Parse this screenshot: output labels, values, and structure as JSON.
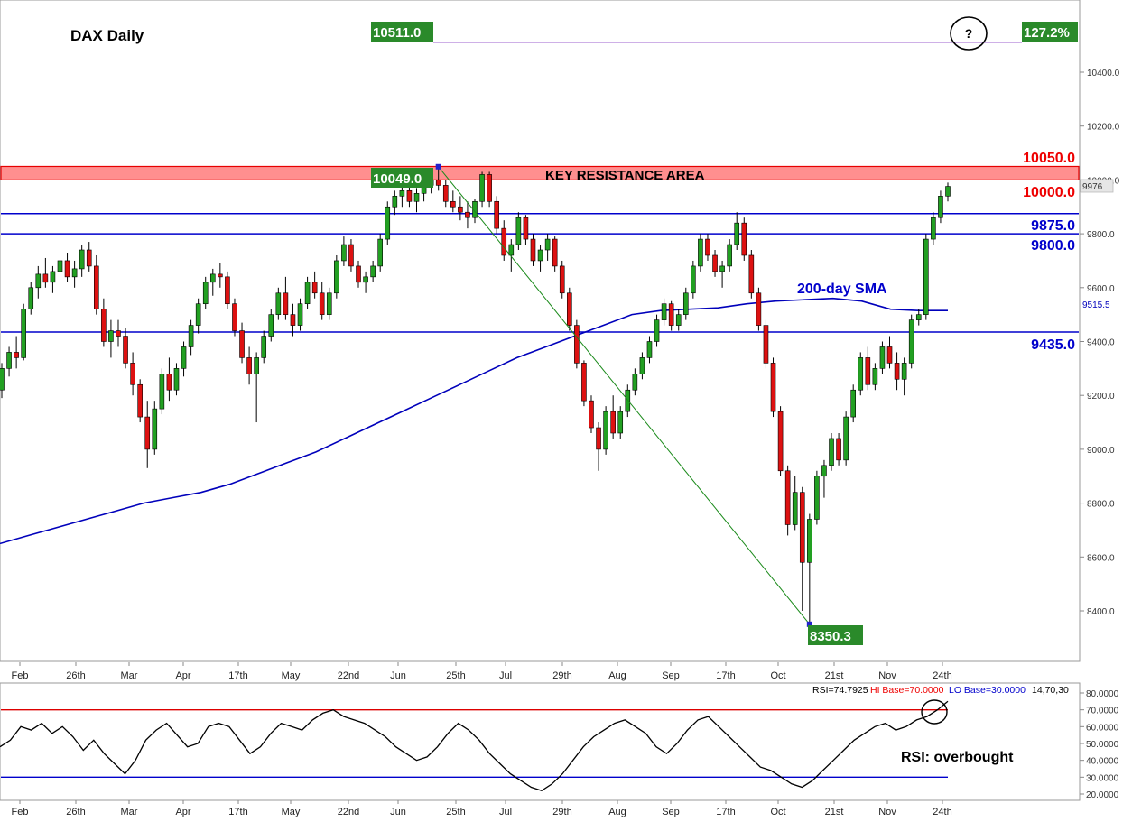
{
  "chart_data": [
    {
      "type": "candlestick",
      "title": "DAX Daily",
      "ylim": [
        8250,
        10550
      ],
      "y_ticks": [
        "10400.0",
        "10200.0",
        "10000.0",
        "9800.0",
        "9600.0",
        "9400.0",
        "9200.0",
        "9000.0",
        "8800.0",
        "8600.0",
        "8400.0"
      ],
      "y_tick_values": [
        10400,
        10200,
        10000,
        9800,
        9600,
        9400,
        9200,
        9000,
        8800,
        8600,
        8400
      ],
      "x_ticks": [
        "Feb",
        "26th",
        "Mar",
        "Apr",
        "17th",
        "May",
        "22nd",
        "Jun",
        "25th",
        "Jul",
        "29th",
        "Aug",
        "Sep",
        "17th",
        "Oct",
        "21st",
        "Nov",
        "24th"
      ],
      "levels": [
        {
          "value": 9875,
          "label": "9875.0",
          "color": "#0000cc"
        },
        {
          "value": 9800,
          "label": "9800.0",
          "color": "#0000cc"
        },
        {
          "value": 9435,
          "label": "9435.0",
          "color": "#0000cc"
        }
      ],
      "resistance_zone": {
        "low": 10000,
        "high": 10050,
        "label": "KEY RESISTANCE AREA",
        "low_label": "10000.0",
        "high_label": "10050.0",
        "color": "#ff4d4d"
      },
      "extension": {
        "value": 10511,
        "label": "10511.0",
        "ratio_label": "127.2%",
        "question": "?"
      },
      "swing_points": [
        {
          "label": "10049.0",
          "value": 10049
        },
        {
          "label": "8350.3",
          "value": 8350.3
        }
      ],
      "sma": {
        "label": "200-day SMA",
        "last_value_label": "9515.5",
        "color": "#0000bb"
      },
      "last_price_label": "9976",
      "candles": [
        [
          9220,
          9320,
          9190,
          9300
        ],
        [
          9300,
          9380,
          9270,
          9360
        ],
        [
          9360,
          9420,
          9300,
          9340
        ],
        [
          9340,
          9540,
          9330,
          9520
        ],
        [
          9520,
          9620,
          9500,
          9600
        ],
        [
          9600,
          9680,
          9560,
          9650
        ],
        [
          9650,
          9710,
          9600,
          9620
        ],
        [
          9620,
          9680,
          9580,
          9660
        ],
        [
          9660,
          9720,
          9630,
          9700
        ],
        [
          9700,
          9730,
          9620,
          9640
        ],
        [
          9640,
          9700,
          9600,
          9670
        ],
        [
          9670,
          9760,
          9640,
          9740
        ],
        [
          9740,
          9770,
          9660,
          9680
        ],
        [
          9680,
          9720,
          9500,
          9520
        ],
        [
          9520,
          9560,
          9380,
          9400
        ],
        [
          9400,
          9480,
          9340,
          9440
        ],
        [
          9440,
          9480,
          9380,
          9420
        ],
        [
          9420,
          9450,
          9300,
          9320
        ],
        [
          9320,
          9360,
          9200,
          9240
        ],
        [
          9240,
          9260,
          9100,
          9120
        ],
        [
          9120,
          9180,
          8930,
          9000
        ],
        [
          9000,
          9180,
          8980,
          9150
        ],
        [
          9150,
          9300,
          9130,
          9280
        ],
        [
          9280,
          9340,
          9180,
          9220
        ],
        [
          9220,
          9320,
          9200,
          9300
        ],
        [
          9300,
          9400,
          9270,
          9380
        ],
        [
          9380,
          9480,
          9350,
          9460
        ],
        [
          9460,
          9560,
          9430,
          9540
        ],
        [
          9540,
          9640,
          9520,
          9620
        ],
        [
          9620,
          9670,
          9570,
          9650
        ],
        [
          9650,
          9690,
          9600,
          9640
        ],
        [
          9640,
          9660,
          9520,
          9540
        ],
        [
          9540,
          9560,
          9420,
          9440
        ],
        [
          9440,
          9470,
          9320,
          9340
        ],
        [
          9340,
          9380,
          9240,
          9280
        ],
        [
          9280,
          9360,
          9100,
          9340
        ],
        [
          9340,
          9440,
          9320,
          9420
        ],
        [
          9420,
          9520,
          9400,
          9500
        ],
        [
          9500,
          9600,
          9480,
          9580
        ],
        [
          9580,
          9640,
          9480,
          9500
        ],
        [
          9500,
          9540,
          9420,
          9460
        ],
        [
          9460,
          9560,
          9440,
          9540
        ],
        [
          9540,
          9640,
          9520,
          9620
        ],
        [
          9620,
          9660,
          9560,
          9580
        ],
        [
          9580,
          9620,
          9480,
          9500
        ],
        [
          9500,
          9600,
          9480,
          9580
        ],
        [
          9580,
          9720,
          9560,
          9700
        ],
        [
          9700,
          9790,
          9680,
          9760
        ],
        [
          9760,
          9780,
          9660,
          9680
        ],
        [
          9680,
          9700,
          9600,
          9620
        ],
        [
          9620,
          9660,
          9580,
          9640
        ],
        [
          9640,
          9700,
          9620,
          9680
        ],
        [
          9680,
          9800,
          9660,
          9780
        ],
        [
          9780,
          9920,
          9760,
          9900
        ],
        [
          9900,
          9960,
          9870,
          9940
        ],
        [
          9940,
          9980,
          9900,
          9960
        ],
        [
          9960,
          9990,
          9900,
          9920
        ],
        [
          9920,
          9970,
          9880,
          9950
        ],
        [
          9950,
          10010,
          9920,
          9980
        ],
        [
          9980,
          10020,
          9950,
          10000
        ],
        [
          10000,
          10049,
          9960,
          9980
        ],
        [
          9980,
          10000,
          9900,
          9920
        ],
        [
          9920,
          9960,
          9880,
          9900
        ],
        [
          9900,
          9940,
          9850,
          9880
        ],
        [
          9880,
          9920,
          9820,
          9860
        ],
        [
          9860,
          9930,
          9840,
          9920
        ],
        [
          9920,
          10030,
          9900,
          10020
        ],
        [
          10020,
          10030,
          9900,
          9920
        ],
        [
          9920,
          9940,
          9800,
          9820
        ],
        [
          9820,
          9850,
          9700,
          9720
        ],
        [
          9720,
          9780,
          9660,
          9760
        ],
        [
          9760,
          9880,
          9740,
          9860
        ],
        [
          9860,
          9870,
          9760,
          9780
        ],
        [
          9780,
          9800,
          9680,
          9700
        ],
        [
          9700,
          9760,
          9660,
          9740
        ],
        [
          9740,
          9800,
          9700,
          9780
        ],
        [
          9780,
          9790,
          9660,
          9680
        ],
        [
          9680,
          9700,
          9560,
          9580
        ],
        [
          9580,
          9600,
          9440,
          9460
        ],
        [
          9460,
          9480,
          9300,
          9320
        ],
        [
          9320,
          9330,
          9160,
          9180
        ],
        [
          9180,
          9200,
          9060,
          9080
        ],
        [
          9080,
          9100,
          8920,
          9000
        ],
        [
          9000,
          9160,
          8980,
          9140
        ],
        [
          9140,
          9200,
          9040,
          9060
        ],
        [
          9060,
          9160,
          9040,
          9140
        ],
        [
          9140,
          9240,
          9120,
          9220
        ],
        [
          9220,
          9300,
          9200,
          9280
        ],
        [
          9280,
          9360,
          9260,
          9340
        ],
        [
          9340,
          9420,
          9320,
          9400
        ],
        [
          9400,
          9500,
          9380,
          9480
        ],
        [
          9480,
          9560,
          9460,
          9540
        ],
        [
          9540,
          9550,
          9440,
          9460
        ],
        [
          9460,
          9520,
          9440,
          9500
        ],
        [
          9500,
          9600,
          9480,
          9580
        ],
        [
          9580,
          9700,
          9560,
          9680
        ],
        [
          9680,
          9800,
          9660,
          9780
        ],
        [
          9780,
          9800,
          9700,
          9720
        ],
        [
          9720,
          9740,
          9640,
          9660
        ],
        [
          9660,
          9700,
          9600,
          9680
        ],
        [
          9680,
          9780,
          9660,
          9760
        ],
        [
          9760,
          9880,
          9740,
          9840
        ],
        [
          9840,
          9860,
          9700,
          9720
        ],
        [
          9720,
          9740,
          9560,
          9580
        ],
        [
          9580,
          9600,
          9440,
          9460
        ],
        [
          9460,
          9480,
          9300,
          9320
        ],
        [
          9320,
          9340,
          9120,
          9140
        ],
        [
          9140,
          9160,
          8900,
          8920
        ],
        [
          8920,
          8940,
          8680,
          8720
        ],
        [
          8720,
          8900,
          8700,
          8840
        ],
        [
          8840,
          8860,
          8400,
          8580
        ],
        [
          8580,
          8760,
          8350,
          8740
        ],
        [
          8740,
          8920,
          8720,
          8900
        ],
        [
          8900,
          8960,
          8820,
          8940
        ],
        [
          8940,
          9060,
          8920,
          9040
        ],
        [
          9040,
          9060,
          8940,
          8960
        ],
        [
          8960,
          9140,
          8940,
          9120
        ],
        [
          9120,
          9240,
          9100,
          9220
        ],
        [
          9220,
          9360,
          9200,
          9340
        ],
        [
          9340,
          9380,
          9220,
          9240
        ],
        [
          9240,
          9320,
          9220,
          9300
        ],
        [
          9300,
          9400,
          9280,
          9380
        ],
        [
          9380,
          9420,
          9300,
          9320
        ],
        [
          9320,
          9360,
          9220,
          9260
        ],
        [
          9260,
          9340,
          9200,
          9320
        ],
        [
          9320,
          9500,
          9300,
          9480
        ],
        [
          9480,
          9520,
          9460,
          9500
        ],
        [
          9500,
          9800,
          9480,
          9780
        ],
        [
          9780,
          9880,
          9760,
          9860
        ],
        [
          9860,
          9960,
          9840,
          9940
        ],
        [
          9940,
          9990,
          9920,
          9976
        ]
      ],
      "sma_values": [
        8650,
        8680,
        8710,
        8740,
        8770,
        8800,
        8820,
        8840,
        8870,
        8910,
        8950,
        8990,
        9040,
        9090,
        9140,
        9190,
        9240,
        9290,
        9340,
        9380,
        9420,
        9460,
        9500,
        9515,
        9520,
        9525,
        9540,
        9550,
        9555,
        9560,
        9550,
        9520,
        9515,
        9515
      ]
    },
    {
      "type": "line",
      "title": "RSI",
      "readout": "RSI=74.7925",
      "hi_base": "HI Base=70.0000",
      "lo_base": "LO Base=30.0000",
      "params": "14,70,30",
      "annotation": "RSI: overbought",
      "ylim": [
        18,
        82
      ],
      "y_ticks": [
        "80.0000",
        "70.0000",
        "60.0000",
        "50.0000",
        "40.0000",
        "30.0000",
        "20.0000"
      ],
      "y_tick_values": [
        80,
        70,
        60,
        50,
        40,
        30,
        20
      ],
      "x_ticks": [
        "Feb",
        "26th",
        "Mar",
        "Apr",
        "17th",
        "May",
        "22nd",
        "Jun",
        "25th",
        "Jul",
        "29th",
        "Aug",
        "Sep",
        "17th",
        "Oct",
        "21st",
        "Nov",
        "24th"
      ],
      "values": [
        48,
        52,
        60,
        58,
        62,
        56,
        60,
        54,
        46,
        52,
        44,
        38,
        32,
        40,
        52,
        58,
        62,
        55,
        48,
        50,
        60,
        62,
        60,
        52,
        44,
        48,
        56,
        62,
        60,
        58,
        64,
        68,
        70,
        66,
        64,
        62,
        58,
        54,
        48,
        44,
        40,
        42,
        48,
        56,
        62,
        58,
        52,
        44,
        38,
        32,
        28,
        24,
        22,
        26,
        32,
        40,
        48,
        54,
        58,
        62,
        64,
        60,
        56,
        48,
        44,
        50,
        58,
        64,
        66,
        60,
        54,
        48,
        42,
        36,
        34,
        30,
        26,
        24,
        28,
        34,
        40,
        46,
        52,
        56,
        60,
        62,
        58,
        60,
        64,
        66,
        70,
        75
      ]
    }
  ]
}
